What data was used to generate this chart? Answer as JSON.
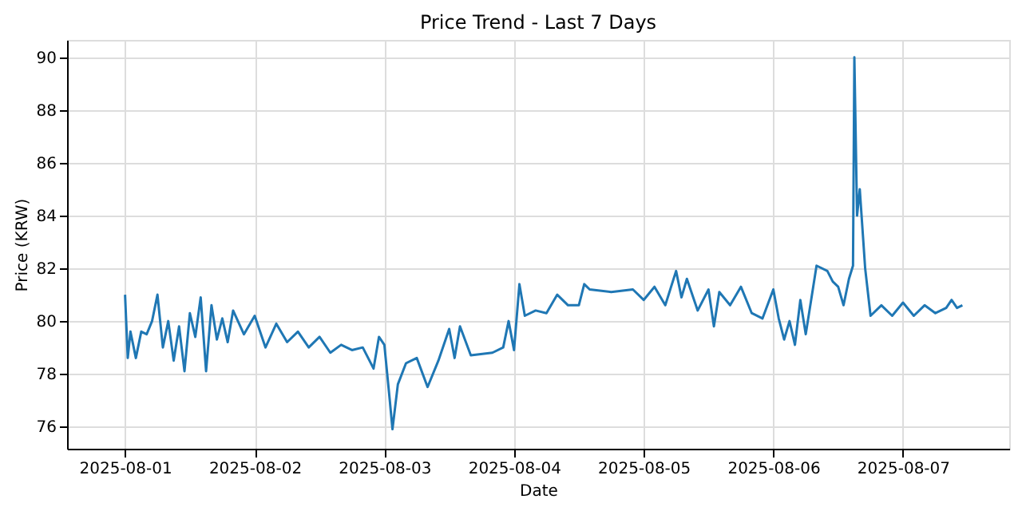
{
  "chart_data": {
    "type": "line",
    "title": "Price Trend - Last 7 Days",
    "xlabel": "Date",
    "ylabel": "Price (KRW)",
    "xlim": [
      "2025-07-31T13:16",
      "2025-08-07T19:40"
    ],
    "xticks": [
      "2025-08-01",
      "2025-08-02",
      "2025-08-03",
      "2025-08-04",
      "2025-08-05",
      "2025-08-06",
      "2025-08-07"
    ],
    "ylim": [
      75.16,
      90.66
    ],
    "yticks": [
      76,
      78,
      80,
      82,
      84,
      86,
      88,
      90
    ],
    "grid": true,
    "marker": "none",
    "line_style": "solid",
    "series": [
      {
        "color": "#1f77b4",
        "x": [
          "2025-08-01T00:00",
          "2025-08-01T00:30",
          "2025-08-01T01:00",
          "2025-08-01T02:00",
          "2025-08-01T03:00",
          "2025-08-01T04:00",
          "2025-08-01T05:00",
          "2025-08-01T06:00",
          "2025-08-01T07:00",
          "2025-08-01T08:00",
          "2025-08-01T09:00",
          "2025-08-01T10:00",
          "2025-08-01T11:00",
          "2025-08-01T12:00",
          "2025-08-01T13:00",
          "2025-08-01T14:00",
          "2025-08-01T15:00",
          "2025-08-01T16:00",
          "2025-08-01T17:00",
          "2025-08-01T18:00",
          "2025-08-01T19:00",
          "2025-08-01T20:00",
          "2025-08-01T22:00",
          "2025-08-02T00:00",
          "2025-08-02T02:00",
          "2025-08-02T04:00",
          "2025-08-02T06:00",
          "2025-08-02T08:00",
          "2025-08-02T10:00",
          "2025-08-02T12:00",
          "2025-08-02T14:00",
          "2025-08-02T16:00",
          "2025-08-02T18:00",
          "2025-08-02T20:00",
          "2025-08-02T22:00",
          "2025-08-02T23:00",
          "2025-08-03T00:00",
          "2025-08-03T01:00",
          "2025-08-03T01:30",
          "2025-08-03T02:30",
          "2025-08-03T04:00",
          "2025-08-03T06:00",
          "2025-08-03T08:00",
          "2025-08-03T10:00",
          "2025-08-03T12:00",
          "2025-08-03T13:00",
          "2025-08-03T14:00",
          "2025-08-03T16:00",
          "2025-08-03T20:00",
          "2025-08-03T22:00",
          "2025-08-03T23:00",
          "2025-08-04T00:00",
          "2025-08-04T01:00",
          "2025-08-04T02:00",
          "2025-08-04T04:00",
          "2025-08-04T06:00",
          "2025-08-04T08:00",
          "2025-08-04T10:00",
          "2025-08-04T12:00",
          "2025-08-04T13:00",
          "2025-08-04T14:00",
          "2025-08-04T18:00",
          "2025-08-04T22:00",
          "2025-08-05T00:00",
          "2025-08-05T02:00",
          "2025-08-05T04:00",
          "2025-08-05T06:00",
          "2025-08-05T07:00",
          "2025-08-05T08:00",
          "2025-08-05T10:00",
          "2025-08-05T12:00",
          "2025-08-05T13:00",
          "2025-08-05T14:00",
          "2025-08-05T16:00",
          "2025-08-05T18:00",
          "2025-08-05T20:00",
          "2025-08-05T22:00",
          "2025-08-06T00:00",
          "2025-08-06T01:00",
          "2025-08-06T02:00",
          "2025-08-06T03:00",
          "2025-08-06T04:00",
          "2025-08-06T05:00",
          "2025-08-06T06:00",
          "2025-08-06T07:00",
          "2025-08-06T08:00",
          "2025-08-06T10:00",
          "2025-08-06T11:00",
          "2025-08-06T12:00",
          "2025-08-06T13:00",
          "2025-08-06T14:00",
          "2025-08-06T14:45",
          "2025-08-06T15:00",
          "2025-08-06T15:30",
          "2025-08-06T16:00",
          "2025-08-06T17:00",
          "2025-08-06T18:00",
          "2025-08-06T20:00",
          "2025-08-06T22:00",
          "2025-08-07T00:00",
          "2025-08-07T02:00",
          "2025-08-07T04:00",
          "2025-08-07T06:00",
          "2025-08-07T08:00",
          "2025-08-07T09:00",
          "2025-08-07T10:00",
          "2025-08-07T11:00"
        ],
        "values": [
          81.0,
          78.6,
          79.6,
          78.6,
          79.6,
          79.5,
          80.0,
          81.0,
          79.0,
          80.0,
          78.5,
          79.8,
          78.1,
          80.3,
          79.4,
          80.9,
          78.1,
          80.6,
          79.3,
          80.1,
          79.2,
          80.4,
          79.5,
          80.2,
          79.0,
          79.9,
          79.2,
          79.6,
          79.0,
          79.4,
          78.8,
          79.1,
          78.9,
          79.0,
          78.2,
          79.4,
          79.1,
          77.0,
          75.9,
          77.6,
          78.4,
          78.6,
          77.5,
          78.5,
          79.7,
          78.6,
          79.8,
          78.7,
          78.8,
          79.0,
          80.0,
          78.9,
          81.4,
          80.2,
          80.4,
          80.3,
          81.0,
          80.6,
          80.6,
          81.4,
          81.2,
          81.1,
          81.2,
          80.8,
          81.3,
          80.6,
          81.9,
          80.9,
          81.6,
          80.4,
          81.2,
          79.8,
          81.1,
          80.6,
          81.3,
          80.3,
          80.1,
          81.2,
          80.1,
          79.3,
          80.0,
          79.1,
          80.8,
          79.5,
          80.8,
          82.1,
          81.9,
          81.5,
          81.3,
          80.6,
          81.6,
          82.1,
          90.0,
          84.0,
          85.0,
          82.0,
          80.2,
          80.6,
          80.2,
          80.7,
          80.2,
          80.6,
          80.3,
          80.5,
          80.8,
          80.5,
          80.6
        ]
      }
    ]
  }
}
